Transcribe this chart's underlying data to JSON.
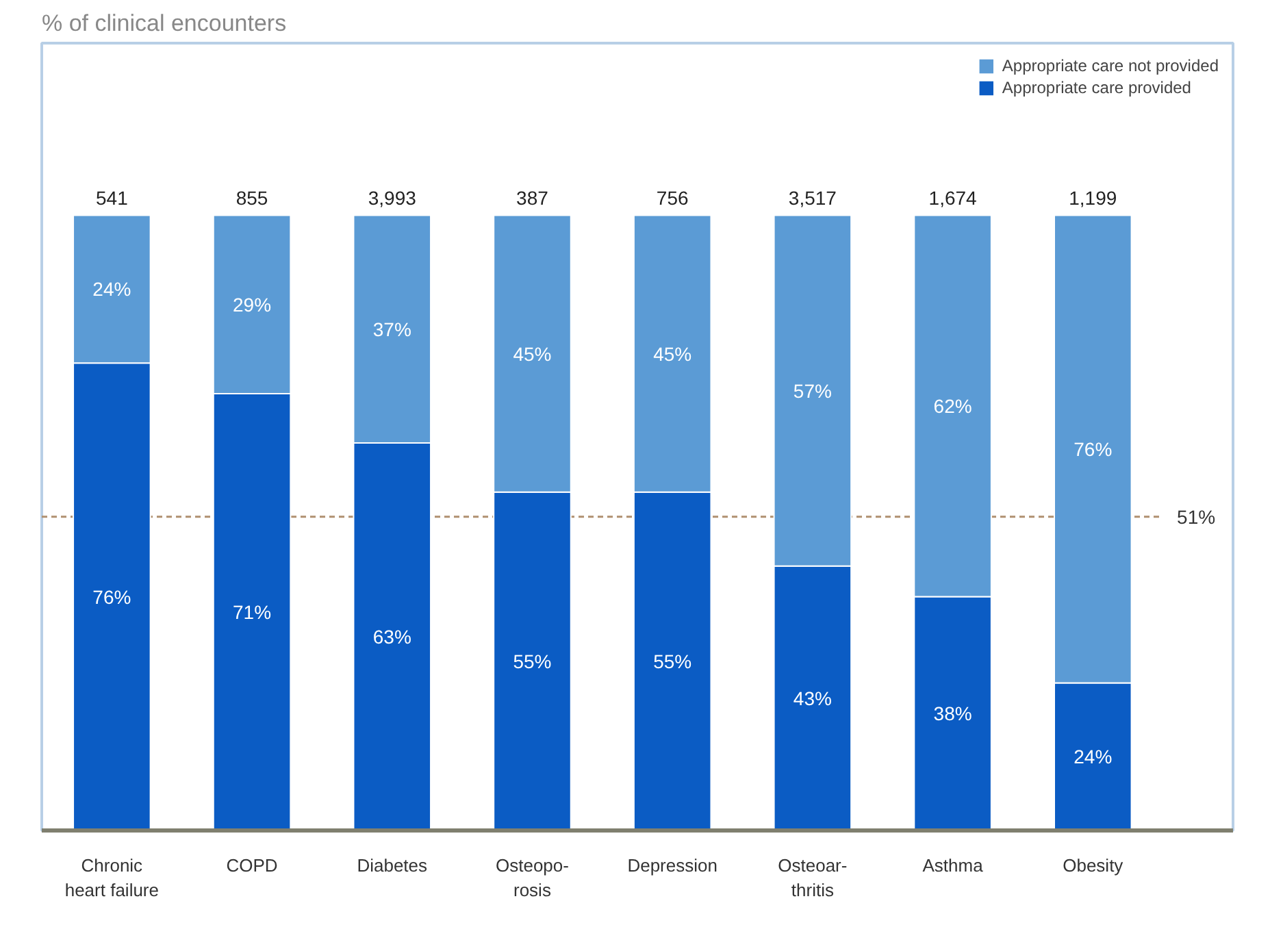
{
  "chart_data": {
    "type": "bar",
    "stacked": true,
    "subtitle": "% of clinical encounters",
    "categories": [
      "Chronic\nheart failure",
      "COPD",
      "Diabetes",
      "Osteopo-\nrosis",
      "Depression",
      "Osteoar-\nthritis",
      "Asthma",
      "Obesity"
    ],
    "series": [
      {
        "name": "Appropriate care provided",
        "color": "#0b5cc4",
        "values": [
          76,
          71,
          63,
          55,
          55,
          43,
          38,
          24
        ],
        "value_labels": [
          "76%",
          "71%",
          "63%",
          "55%",
          "55%",
          "43%",
          "38%",
          "24%"
        ]
      },
      {
        "name": "Appropriate care not provided",
        "color": "#5b9bd5",
        "values": [
          24,
          29,
          37,
          45,
          45,
          57,
          62,
          76
        ],
        "value_labels": [
          "24%",
          "29%",
          "37%",
          "45%",
          "45%",
          "57%",
          "62%",
          "76%"
        ]
      }
    ],
    "annotations": [
      {
        "text": "541",
        "x": "Chronic\nheart failure",
        "y": 100
      },
      {
        "text": "855",
        "x": "COPD",
        "y": 100
      },
      {
        "text": "3,993",
        "x": "Diabetes",
        "y": 100
      },
      {
        "text": "387",
        "x": "Osteopo-\nrosis",
        "y": 100
      },
      {
        "text": "756",
        "x": "Depression",
        "y": 100
      },
      {
        "text": "3,517",
        "x": "Osteoar-\nthritis",
        "y": 100
      },
      {
        "text": "1,674",
        "x": "Asthma",
        "y": 100
      },
      {
        "text": "1,199",
        "x": "Obesity",
        "y": 100
      }
    ],
    "ref_lines": [
      {
        "axis": "y",
        "value": 51,
        "label": "51%",
        "color": "#b09070",
        "line_style": "dashed"
      }
    ],
    "legend": "top right"
  }
}
